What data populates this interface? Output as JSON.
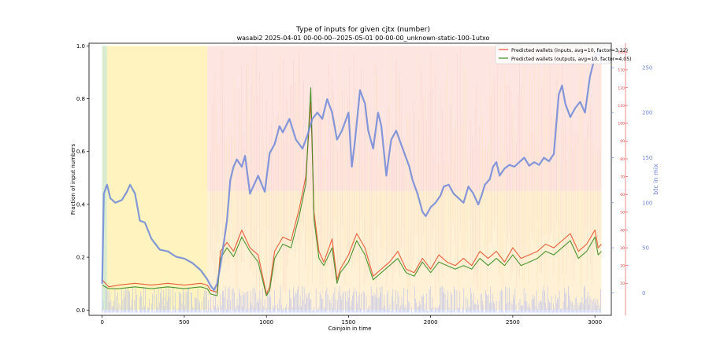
{
  "chart_data": {
    "type": "line",
    "title": "Type of inputs for given cjtx (number)",
    "subtitle": "wasabi2 2025-04-01 00-00-00--2025-05-01 00-00-00_unknown-static-100-1utxo",
    "xlabel": "Coinjoin in time",
    "ylabel": "Fraction of input numbers",
    "y2label": "btc in mix",
    "xlim": [
      -80,
      3100
    ],
    "ylim": [
      -0.02,
      1.01
    ],
    "y2lim": [
      -25,
      277
    ],
    "y3lim": [
      -8,
      145
    ],
    "x_ticks": [
      0,
      500,
      1000,
      1500,
      2000,
      2500,
      3000
    ],
    "y_ticks": [
      0.0,
      0.2,
      0.4,
      0.6,
      0.8,
      1.0
    ],
    "y2_ticks": [
      0,
      50,
      100,
      150,
      200,
      250
    ],
    "y3_ticks": [
      10,
      20,
      30,
      40,
      50,
      60,
      70,
      80,
      90,
      100,
      110,
      120,
      130,
      140
    ],
    "grid": false,
    "legend_position": "top-right",
    "series": [
      {
        "name": "Predicted wallets (inputs, avg=10, factor=3.22)",
        "color": "#e8502a",
        "axis": "right-inner",
        "points": [
          [
            0,
            12
          ],
          [
            40,
            8
          ],
          [
            100,
            9
          ],
          [
            200,
            10
          ],
          [
            300,
            9
          ],
          [
            400,
            10
          ],
          [
            500,
            9
          ],
          [
            600,
            10
          ],
          [
            640,
            9
          ],
          [
            660,
            6
          ],
          [
            700,
            5
          ],
          [
            720,
            28
          ],
          [
            760,
            33
          ],
          [
            800,
            28
          ],
          [
            850,
            40
          ],
          [
            900,
            30
          ],
          [
            950,
            26
          ],
          [
            1000,
            4
          ],
          [
            1020,
            8
          ],
          [
            1050,
            28
          ],
          [
            1100,
            36
          ],
          [
            1150,
            34
          ],
          [
            1200,
            52
          ],
          [
            1240,
            70
          ],
          [
            1270,
            112
          ],
          [
            1290,
            50
          ],
          [
            1320,
            28
          ],
          [
            1350,
            22
          ],
          [
            1400,
            35
          ],
          [
            1430,
            12
          ],
          [
            1450,
            18
          ],
          [
            1500,
            26
          ],
          [
            1550,
            38
          ],
          [
            1600,
            30
          ],
          [
            1650,
            14
          ],
          [
            1700,
            18
          ],
          [
            1750,
            22
          ],
          [
            1800,
            28
          ],
          [
            1850,
            18
          ],
          [
            1900,
            16
          ],
          [
            1950,
            24
          ],
          [
            2000,
            18
          ],
          [
            2050,
            26
          ],
          [
            2100,
            22
          ],
          [
            2150,
            20
          ],
          [
            2200,
            24
          ],
          [
            2250,
            20
          ],
          [
            2300,
            28
          ],
          [
            2350,
            24
          ],
          [
            2400,
            28
          ],
          [
            2450,
            22
          ],
          [
            2500,
            30
          ],
          [
            2550,
            24
          ],
          [
            2600,
            26
          ],
          [
            2650,
            28
          ],
          [
            2700,
            32
          ],
          [
            2750,
            30
          ],
          [
            2800,
            34
          ],
          [
            2850,
            38
          ],
          [
            2900,
            28
          ],
          [
            2950,
            32
          ],
          [
            3000,
            40
          ],
          [
            3020,
            30
          ],
          [
            3040,
            32
          ]
        ]
      },
      {
        "name": "Predicted wallets (outputs, avg=10, factor=4.05)",
        "color": "#3a8a1f",
        "axis": "right-inner",
        "points": [
          [
            0,
            9
          ],
          [
            40,
            7
          ],
          [
            100,
            7
          ],
          [
            200,
            8
          ],
          [
            300,
            7
          ],
          [
            400,
            8
          ],
          [
            500,
            7
          ],
          [
            600,
            8
          ],
          [
            640,
            7
          ],
          [
            660,
            4
          ],
          [
            700,
            3
          ],
          [
            720,
            24
          ],
          [
            760,
            30
          ],
          [
            800,
            25
          ],
          [
            850,
            36
          ],
          [
            900,
            28
          ],
          [
            950,
            22
          ],
          [
            1000,
            3
          ],
          [
            1020,
            6
          ],
          [
            1050,
            24
          ],
          [
            1100,
            32
          ],
          [
            1150,
            30
          ],
          [
            1200,
            48
          ],
          [
            1240,
            66
          ],
          [
            1270,
            120
          ],
          [
            1290,
            46
          ],
          [
            1320,
            24
          ],
          [
            1350,
            20
          ],
          [
            1400,
            30
          ],
          [
            1430,
            10
          ],
          [
            1450,
            16
          ],
          [
            1500,
            22
          ],
          [
            1550,
            34
          ],
          [
            1600,
            26
          ],
          [
            1650,
            12
          ],
          [
            1700,
            16
          ],
          [
            1750,
            20
          ],
          [
            1800,
            24
          ],
          [
            1850,
            16
          ],
          [
            1900,
            14
          ],
          [
            1950,
            22
          ],
          [
            2000,
            16
          ],
          [
            2050,
            22
          ],
          [
            2100,
            20
          ],
          [
            2150,
            18
          ],
          [
            2200,
            20
          ],
          [
            2250,
            18
          ],
          [
            2300,
            24
          ],
          [
            2350,
            20
          ],
          [
            2400,
            24
          ],
          [
            2450,
            20
          ],
          [
            2500,
            26
          ],
          [
            2550,
            20
          ],
          [
            2600,
            22
          ],
          [
            2650,
            24
          ],
          [
            2700,
            28
          ],
          [
            2750,
            26
          ],
          [
            2800,
            30
          ],
          [
            2850,
            34
          ],
          [
            2900,
            24
          ],
          [
            2950,
            28
          ],
          [
            3000,
            36
          ],
          [
            3020,
            26
          ],
          [
            3040,
            28
          ]
        ]
      },
      {
        "name": "btc in mix",
        "color": "#6f87d8",
        "axis": "right-outer",
        "points": [
          [
            0,
            10
          ],
          [
            10,
            110
          ],
          [
            30,
            120
          ],
          [
            50,
            105
          ],
          [
            80,
            100
          ],
          [
            120,
            103
          ],
          [
            150,
            112
          ],
          [
            170,
            120
          ],
          [
            200,
            110
          ],
          [
            230,
            80
          ],
          [
            260,
            78
          ],
          [
            300,
            60
          ],
          [
            350,
            48
          ],
          [
            400,
            46
          ],
          [
            450,
            40
          ],
          [
            500,
            38
          ],
          [
            550,
            33
          ],
          [
            600,
            25
          ],
          [
            640,
            15
          ],
          [
            660,
            8
          ],
          [
            680,
            3
          ],
          [
            700,
            10
          ],
          [
            720,
            30
          ],
          [
            740,
            55
          ],
          [
            760,
            80
          ],
          [
            780,
            125
          ],
          [
            800,
            140
          ],
          [
            820,
            148
          ],
          [
            850,
            140
          ],
          [
            870,
            152
          ],
          [
            900,
            110
          ],
          [
            950,
            130
          ],
          [
            990,
            112
          ],
          [
            1020,
            155
          ],
          [
            1050,
            165
          ],
          [
            1080,
            185
          ],
          [
            1100,
            178
          ],
          [
            1140,
            193
          ],
          [
            1180,
            170
          ],
          [
            1220,
            160
          ],
          [
            1250,
            175
          ],
          [
            1280,
            193
          ],
          [
            1310,
            200
          ],
          [
            1340,
            193
          ],
          [
            1370,
            215
          ],
          [
            1400,
            200
          ],
          [
            1430,
            170
          ],
          [
            1460,
            180
          ],
          [
            1500,
            200
          ],
          [
            1520,
            140
          ],
          [
            1540,
            170
          ],
          [
            1570,
            225
          ],
          [
            1600,
            210
          ],
          [
            1620,
            180
          ],
          [
            1650,
            160
          ],
          [
            1680,
            200
          ],
          [
            1700,
            185
          ],
          [
            1730,
            130
          ],
          [
            1760,
            170
          ],
          [
            1790,
            180
          ],
          [
            1820,
            165
          ],
          [
            1850,
            150
          ],
          [
            1870,
            140
          ],
          [
            1890,
            125
          ],
          [
            1920,
            110
          ],
          [
            1950,
            90
          ],
          [
            1970,
            85
          ],
          [
            2000,
            95
          ],
          [
            2030,
            100
          ],
          [
            2060,
            108
          ],
          [
            2080,
            118
          ],
          [
            2110,
            120
          ],
          [
            2140,
            110
          ],
          [
            2170,
            105
          ],
          [
            2200,
            100
          ],
          [
            2230,
            118
          ],
          [
            2260,
            110
          ],
          [
            2290,
            98
          ],
          [
            2310,
            108
          ],
          [
            2330,
            120
          ],
          [
            2360,
            126
          ],
          [
            2380,
            140
          ],
          [
            2400,
            145
          ],
          [
            2420,
            130
          ],
          [
            2450,
            138
          ],
          [
            2480,
            142
          ],
          [
            2510,
            140
          ],
          [
            2540,
            145
          ],
          [
            2570,
            150
          ],
          [
            2600,
            141
          ],
          [
            2630,
            145
          ],
          [
            2660,
            142
          ],
          [
            2690,
            150
          ],
          [
            2720,
            146
          ],
          [
            2750,
            154
          ],
          [
            2780,
            220
          ],
          [
            2800,
            230
          ],
          [
            2820,
            210
          ],
          [
            2850,
            195
          ],
          [
            2880,
            205
          ],
          [
            2910,
            212
          ],
          [
            2940,
            200
          ],
          [
            2970,
            240
          ],
          [
            3000,
            262
          ],
          [
            3020,
            270
          ],
          [
            3040,
            255
          ]
        ]
      }
    ]
  }
}
